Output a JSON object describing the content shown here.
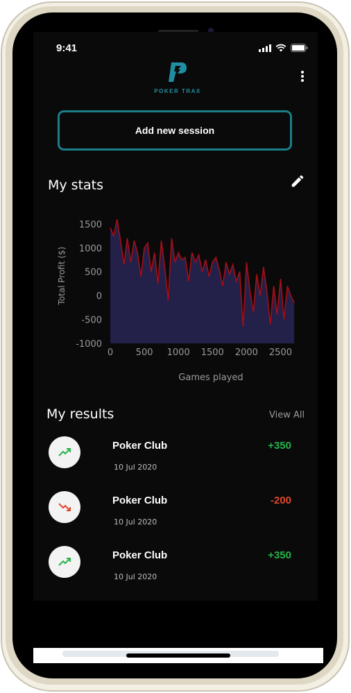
{
  "status": {
    "time": "9:41"
  },
  "header": {
    "logo_text": "POKER TRAX",
    "menu_icon": "more-vertical-icon"
  },
  "actions": {
    "add_session_label": "Add new session"
  },
  "stats": {
    "title": "My stats",
    "edit_icon": "pencil-icon"
  },
  "colors": {
    "accent": "#1b7f88",
    "positive": "#25b34a",
    "negative": "#e2462a",
    "chart_fill": "#23204a",
    "chart_line": "#a50e14"
  },
  "chart_data": {
    "type": "area",
    "xlabel": "Games played",
    "ylabel": "Total Profit ($)",
    "xlim": [
      0,
      2750
    ],
    "ylim": [
      -1000,
      1600
    ],
    "xticks": [
      0,
      500,
      1000,
      1500,
      2000,
      2500
    ],
    "yticks": [
      1500,
      1000,
      500,
      0,
      -500,
      -1000
    ],
    "x": [
      0,
      50,
      100,
      150,
      200,
      250,
      300,
      350,
      400,
      450,
      500,
      550,
      600,
      650,
      700,
      750,
      800,
      850,
      900,
      950,
      1000,
      1050,
      1100,
      1150,
      1200,
      1250,
      1300,
      1350,
      1400,
      1450,
      1500,
      1550,
      1600,
      1650,
      1700,
      1750,
      1800,
      1850,
      1900,
      1950,
      2000,
      2050,
      2100,
      2150,
      2200,
      2250,
      2300,
      2350,
      2400,
      2450,
      2500,
      2550,
      2600,
      2650,
      2700
    ],
    "y": [
      1420,
      1250,
      1600,
      1150,
      650,
      1200,
      700,
      1150,
      900,
      400,
      1000,
      1100,
      500,
      900,
      250,
      1150,
      600,
      -100,
      1200,
      700,
      900,
      750,
      800,
      300,
      900,
      700,
      850,
      500,
      750,
      400,
      700,
      800,
      550,
      200,
      700,
      450,
      650,
      300,
      500,
      -650,
      700,
      100,
      -350,
      450,
      0,
      600,
      100,
      -600,
      200,
      -400,
      350,
      -500,
      200,
      0,
      -150
    ],
    "grid": false
  },
  "results": {
    "title": "My results",
    "view_all_label": "View All",
    "items": [
      {
        "name": "Poker Club",
        "date": "10 Jul 2020",
        "amount": "+350",
        "trend": "up"
      },
      {
        "name": "Poker Club",
        "date": "10 Jul 2020",
        "amount": "-200",
        "trend": "down"
      },
      {
        "name": "Poker Club",
        "date": "10 Jul 2020",
        "amount": "+350",
        "trend": "up"
      }
    ]
  }
}
